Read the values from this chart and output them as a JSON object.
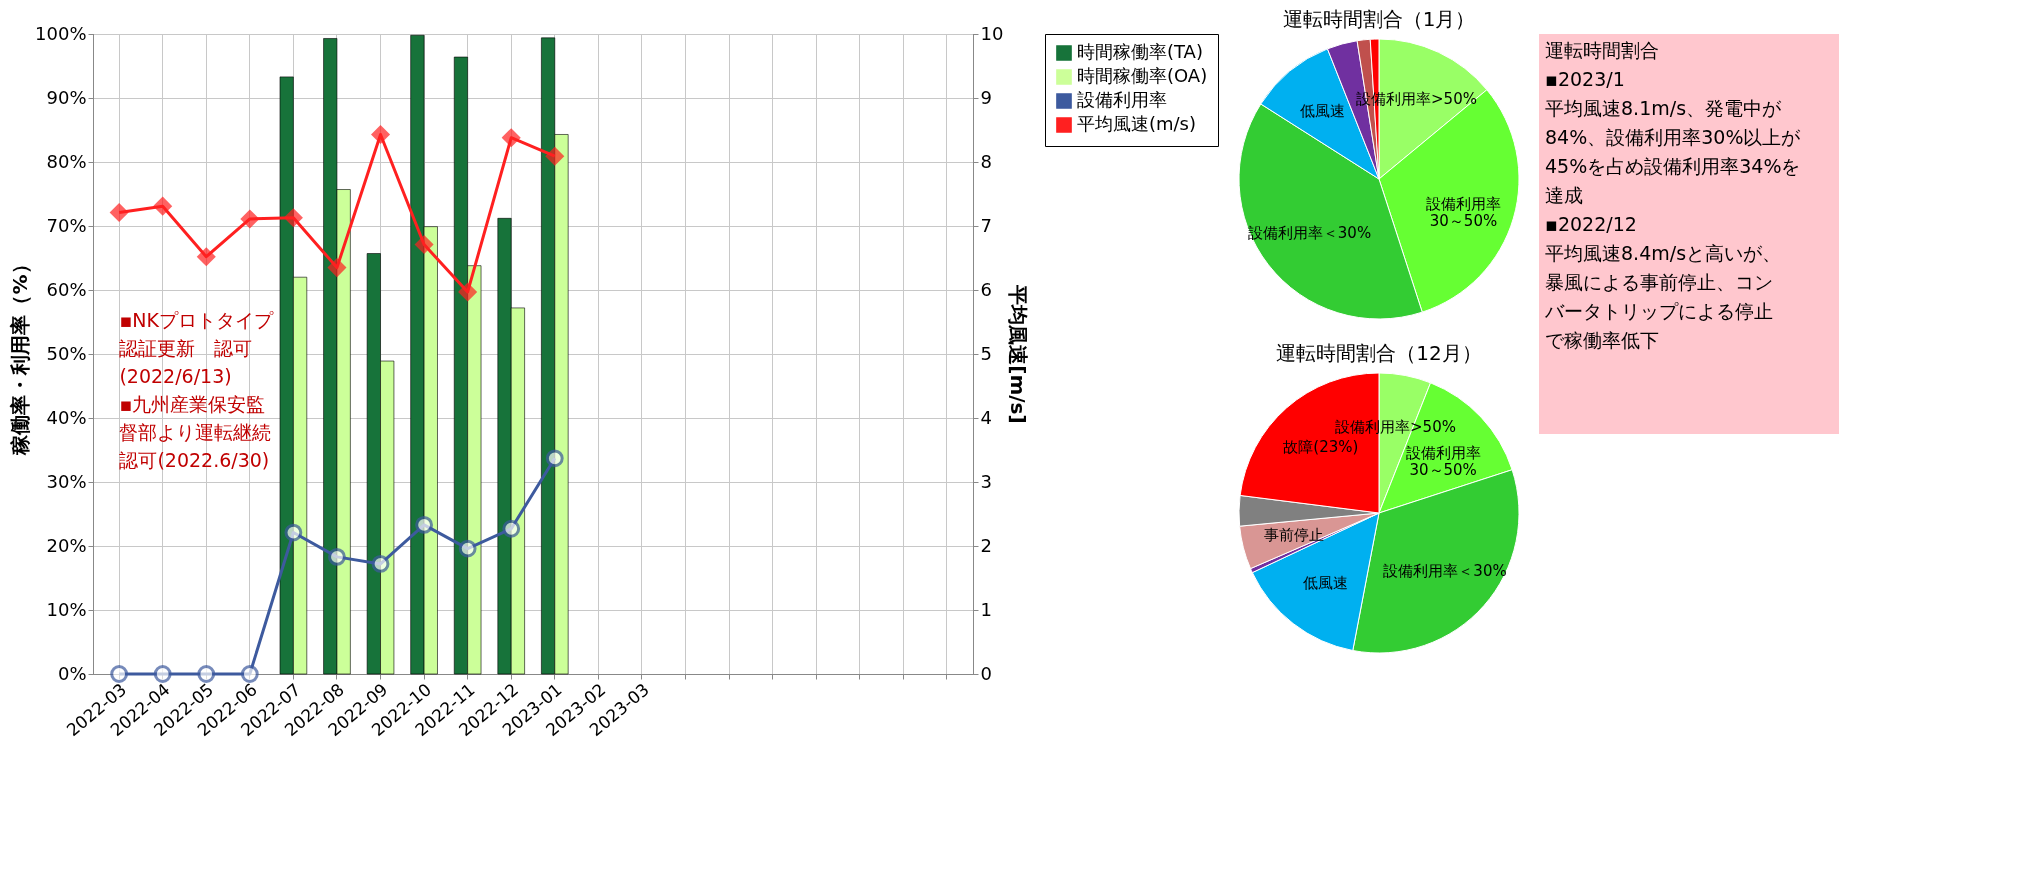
{
  "chart_data": [
    {
      "type": "bar",
      "ylabel": "稼働率・利用率（%）",
      "y2label": "平均風速[m/s]",
      "categories": [
        "2022-03",
        "2022-04",
        "2022-05",
        "2022-06",
        "2022-07",
        "2022-08",
        "2022-09",
        "2022-10",
        "2022-11",
        "2022-12",
        "2023-01",
        "2023-02",
        "2023-03",
        null,
        null,
        null,
        null,
        null,
        null,
        null
      ],
      "series": [
        {
          "name": "時間稼働率(TA)",
          "type": "bar",
          "color": "#17733a",
          "values": [
            null,
            null,
            null,
            null,
            93.3,
            99.3,
            65.7,
            99.8,
            96.4,
            71.2,
            99.4,
            null,
            null,
            null,
            null,
            null,
            null,
            null,
            null,
            null
          ]
        },
        {
          "name": "時間稼働率(OA)",
          "type": "bar",
          "color": "#ccff99",
          "values": [
            null,
            null,
            null,
            null,
            62.0,
            75.7,
            48.9,
            69.9,
            63.8,
            57.2,
            84.3,
            null,
            null,
            null,
            null,
            null,
            null,
            null,
            null,
            null
          ]
        },
        {
          "name": "設備利用率",
          "type": "line",
          "color": "#3d5a9e",
          "marker": "circle",
          "values": [
            0,
            0,
            0,
            0,
            22.1,
            18.3,
            17.2,
            23.3,
            19.6,
            22.7,
            33.7,
            null,
            null,
            null,
            null,
            null,
            null,
            null,
            null,
            null
          ]
        },
        {
          "name": "平均風速(m/s)",
          "type": "line",
          "color": "#ff2020",
          "marker": "diamond",
          "axis": "y2",
          "values": [
            7.21,
            7.31,
            6.52,
            7.11,
            7.13,
            6.35,
            8.43,
            6.71,
            5.97,
            8.38,
            8.09,
            null,
            null,
            null,
            null,
            null,
            null,
            null,
            null,
            null
          ]
        }
      ],
      "ylim": [
        0,
        100
      ],
      "yticks": [
        {
          "value": 0,
          "label": "0%"
        },
        {
          "value": 10,
          "label": "10%"
        },
        {
          "value": 20,
          "label": "20%"
        },
        {
          "value": 30,
          "label": "30%"
        },
        {
          "value": 40,
          "label": "40%"
        },
        {
          "value": 50,
          "label": "50%"
        },
        {
          "value": 60,
          "label": "60%"
        },
        {
          "value": 70,
          "label": "70%"
        },
        {
          "value": 80,
          "label": "80%"
        },
        {
          "value": 90,
          "label": "90%"
        },
        {
          "value": 100,
          "label": "100%"
        }
      ],
      "y2lim": [
        0,
        10
      ],
      "y2ticks": [
        0,
        1,
        2,
        3,
        4,
        5,
        6,
        7,
        8,
        9,
        10
      ],
      "grid": true,
      "legend": "top right",
      "annotations": [
        "▪NKプロトタイプ認証更新　認可(2022/6/13)\n\n▪九州産業保安監督部より運転継続認可(2022.6/30)",
        "運転時間割合\n▪2023/1\n平均風速8.1m/s、発電中が84%、設備利用率30%以上が45%を占め設備利用率34%を達成\n\n▪2022/12\n平均風速8.4m/sと高いが、暴風による事前停止、コンバータトリップによる停止で稼働率低下"
      ]
    },
    {
      "type": "pie",
      "title": "運転時間割合（1月）",
      "categories": [
        "設備利用率>50%",
        "設備利用率\n30～50%",
        "設備利用率＜30%",
        "低風速",
        null,
        null,
        null
      ],
      "values": [
        14,
        31,
        39,
        10,
        3.5,
        1.5,
        1
      ],
      "colors": [
        "#99ff66",
        "#66ff33",
        "#33cc33",
        "#00b0f0",
        "#7030a0",
        "#c0504d",
        "#ff0000"
      ]
    },
    {
      "type": "pie",
      "title": "運転時間割合（12月）",
      "categories": [
        "設備利用率>50%",
        "設備利用率\n30～50%",
        "設備利用率＜30%",
        "低風速",
        null,
        "事前停止",
        null,
        "故障(23%)"
      ],
      "values": [
        6,
        14,
        33,
        15,
        0.5,
        5,
        3.5,
        23
      ],
      "colors": [
        "#99ff66",
        "#66ff33",
        "#33cc33",
        "#00b0f0",
        "#7030a0",
        "#d99694",
        "#808080",
        "#ff0000"
      ]
    }
  ]
}
